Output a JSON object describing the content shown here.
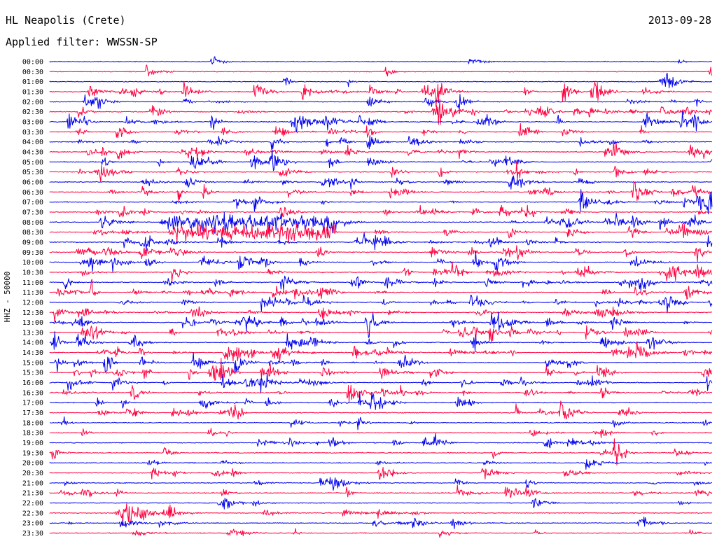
{
  "header": {
    "station": "HL Neapolis (Crete)",
    "date": "2013-09-28",
    "filter": "Applied filter: WWSSN-SP"
  },
  "chart_data": {
    "type": "line",
    "title": "HL Neapolis (Crete)",
    "date": "2013-09-28",
    "filter": "WWSSN-SP",
    "ylabel": "HHZ - 50000",
    "xlabel": "",
    "row_labels": [
      "00:00",
      "00:30",
      "01:00",
      "01:30",
      "02:00",
      "02:30",
      "03:00",
      "03:30",
      "04:00",
      "04:30",
      "05:00",
      "05:30",
      "06:00",
      "06:30",
      "07:00",
      "07:30",
      "08:00",
      "08:30",
      "09:00",
      "09:30",
      "10:00",
      "10:30",
      "11:00",
      "11:30",
      "12:00",
      "12:30",
      "13:00",
      "13:30",
      "14:00",
      "14:30",
      "15:00",
      "15:30",
      "16:00",
      "16:30",
      "17:00",
      "17:30",
      "18:00",
      "18:30",
      "19:00",
      "19:30",
      "20:00",
      "20:30",
      "21:00",
      "21:30",
      "22:00",
      "22:30",
      "23:00",
      "23:30"
    ],
    "colors": [
      "#0000ee",
      "#ff0040"
    ],
    "grid": false,
    "legend": "none"
  }
}
